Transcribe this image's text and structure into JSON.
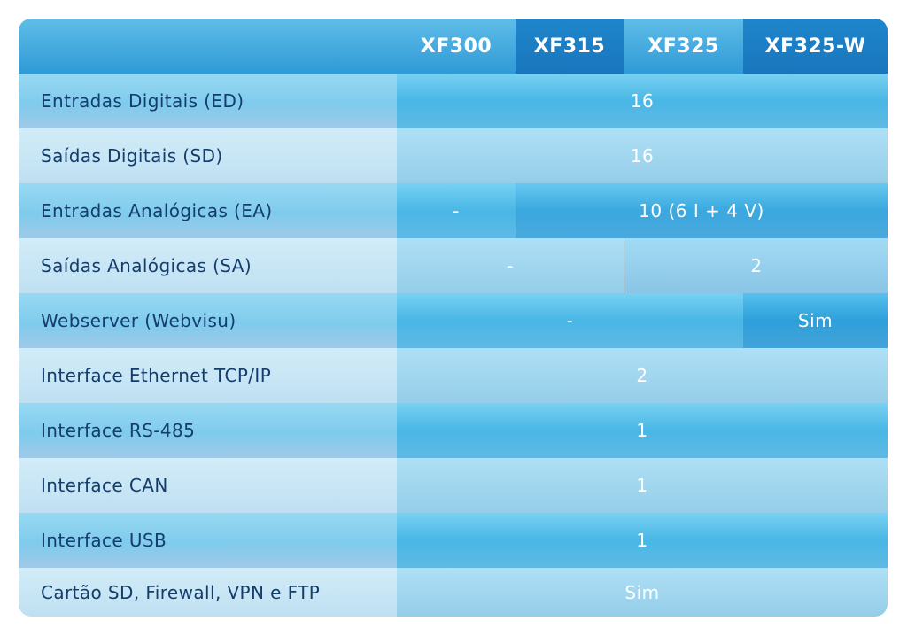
{
  "header": {
    "models": [
      "XF300",
      "XF315",
      "XF325",
      "XF325-W"
    ]
  },
  "rows": [
    {
      "label": "Entradas Digitais (ED)",
      "values": [
        "16"
      ]
    },
    {
      "label": "Saídas Digitais (SD)",
      "values": [
        "16"
      ]
    },
    {
      "label": "Entradas Analógicas (EA)",
      "values": [
        "-",
        "10 (6 I + 4 V)"
      ]
    },
    {
      "label": "Saídas Analógicas (SA)",
      "values": [
        "-",
        "2"
      ]
    },
    {
      "label": "Webserver (Webvisu)",
      "values": [
        "-",
        "Sim"
      ]
    },
    {
      "label": "Interface Ethernet TCP/IP",
      "values": [
        "2"
      ]
    },
    {
      "label": "Interface RS-485",
      "values": [
        "1"
      ]
    },
    {
      "label": "Interface CAN",
      "values": [
        "1"
      ]
    },
    {
      "label": "Interface USB",
      "values": [
        "1"
      ]
    },
    {
      "label": "Cartão SD, Firewall, VPN e FTP",
      "values": [
        "Sim"
      ]
    }
  ]
}
